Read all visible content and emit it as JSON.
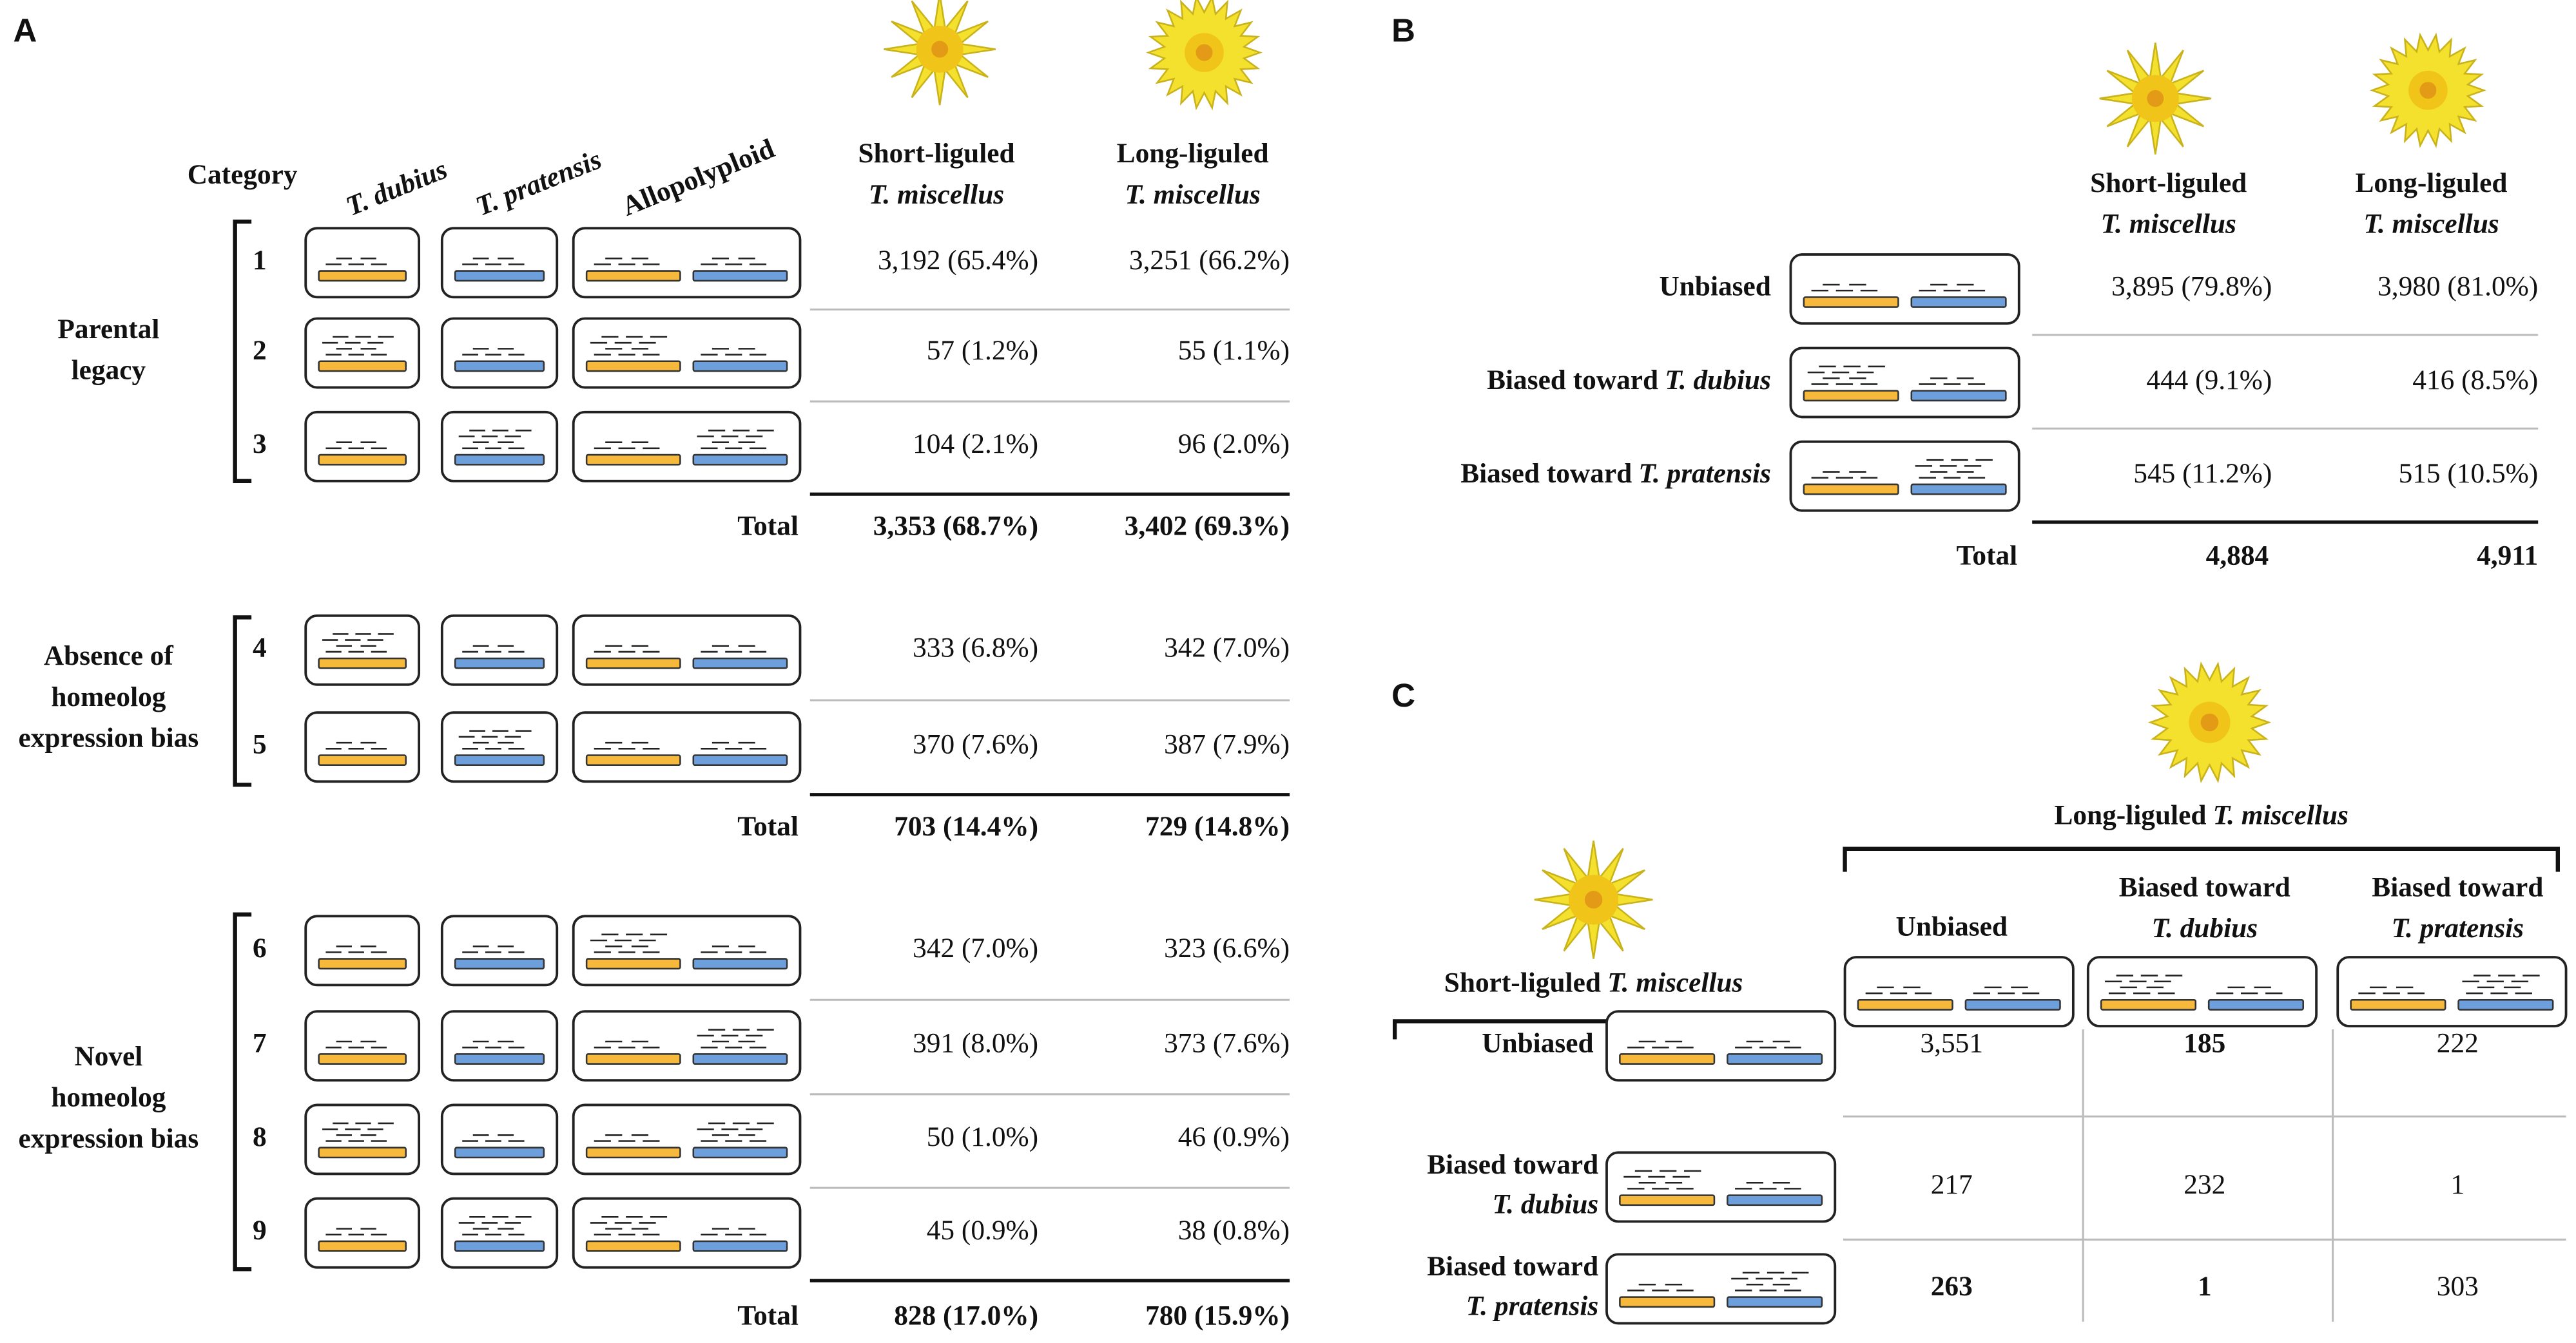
{
  "panel_a": {
    "label": "A",
    "category_header": "Category",
    "species_headers": [
      "T. dubius",
      "T. pratensis",
      "Allopolyploid"
    ],
    "columns": [
      {
        "line1": "Short-liguled",
        "line2": "T. miscellus"
      },
      {
        "line1": "Long-liguled",
        "line2": "T. miscellus"
      }
    ],
    "groups": [
      {
        "name_lines": [
          "Parental",
          "legacy"
        ],
        "rows": [
          {
            "category": "1",
            "short": "3,192 (65.4%)",
            "long": "3,251 (66.2%)"
          },
          {
            "category": "2",
            "short": "57 (1.2%)",
            "long": "55 (1.1%)"
          },
          {
            "category": "3",
            "short": "104 (2.1%)",
            "long": "96 (2.0%)"
          }
        ],
        "total": {
          "label": "Total",
          "short": "3,353 (68.7%)",
          "long": "3,402 (69.3%)"
        }
      },
      {
        "name_lines": [
          "Absence of",
          "homeolog",
          "expression bias"
        ],
        "rows": [
          {
            "category": "4",
            "short": "333 (6.8%)",
            "long": "342 (7.0%)"
          },
          {
            "category": "5",
            "short": "370 (7.6%)",
            "long": "387 (7.9%)"
          }
        ],
        "total": {
          "label": "Total",
          "short": "703 (14.4%)",
          "long": "729 (14.8%)"
        }
      },
      {
        "name_lines": [
          "Novel",
          "homeolog",
          "expression bias"
        ],
        "rows": [
          {
            "category": "6",
            "short": "342 (7.0%)",
            "long": "323 (6.6%)"
          },
          {
            "category": "7",
            "short": "391 (8.0%)",
            "long": "373 (7.6%)"
          },
          {
            "category": "8",
            "short": "50 (1.0%)",
            "long": "46 (0.9%)"
          },
          {
            "category": "9",
            "short": "45 (0.9%)",
            "long": "38 (0.8%)"
          }
        ],
        "total": {
          "label": "Total",
          "short": "828 (17.0%)",
          "long": "780 (15.9%)"
        }
      }
    ]
  },
  "panel_b": {
    "label": "B",
    "columns": [
      {
        "line1": "Short-liguled",
        "line2": "T. miscellus"
      },
      {
        "line1": "Long-liguled",
        "line2": "T. miscellus"
      }
    ],
    "rows": [
      {
        "label": "Unbiased",
        "short": "3,895 (79.8%)",
        "long": "3,980 (81.0%)"
      },
      {
        "label": "Biased toward",
        "species": "T. dubius",
        "short": "444 (9.1%)",
        "long": "416 (8.5%)"
      },
      {
        "label": "Biased toward",
        "species": "T. pratensis",
        "short": "545 (11.2%)",
        "long": "515 (10.5%)"
      }
    ],
    "total": {
      "label": "Total",
      "short": "4,884",
      "long": "4,911"
    }
  },
  "panel_c": {
    "label": "C",
    "long_header": {
      "text": "Long-liguled",
      "species": "T. miscellus"
    },
    "short_header": {
      "text": "Short-liguled",
      "species": "T. miscellus"
    },
    "columns": [
      {
        "label": "Unbiased"
      },
      {
        "label": "Biased toward",
        "species": "T. dubius"
      },
      {
        "label": "Biased toward",
        "species": "T. pratensis"
      }
    ],
    "rows": [
      {
        "label": "Unbiased"
      },
      {
        "label": "Biased toward",
        "species": "T. dubius"
      },
      {
        "label": "Biased toward",
        "species": "T. pratensis"
      }
    ],
    "cells": [
      [
        "3,551",
        "185",
        "222"
      ],
      [
        "217",
        "232",
        "1"
      ],
      [
        "263",
        "1",
        "303"
      ]
    ]
  }
}
